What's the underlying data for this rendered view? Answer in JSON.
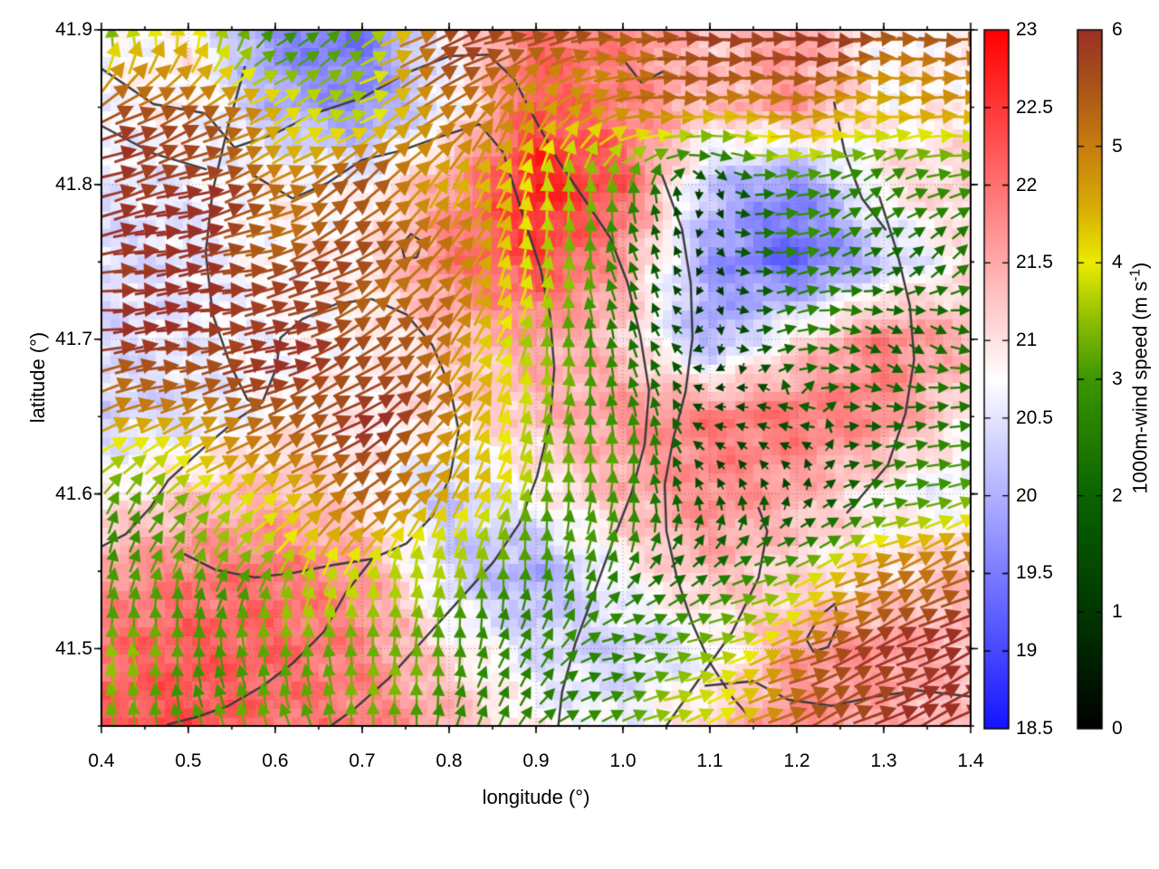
{
  "axes": {
    "x": {
      "label": "longitude (°)",
      "range": [
        0.4,
        1.4
      ],
      "ticks": [
        "0.4",
        "0.5",
        "0.6",
        "0.7",
        "0.8",
        "0.9",
        "1.0",
        "1.1",
        "1.2",
        "1.3",
        "1.4"
      ],
      "minor_step": 0.05
    },
    "y": {
      "label": "latitude (°)",
      "range": [
        41.45,
        41.9
      ],
      "ticks": [
        "41.5",
        "41.6",
        "41.7",
        "41.8",
        "41.9"
      ],
      "minor_step": 0.05
    }
  },
  "colorbars": {
    "temperature": {
      "range": [
        18.5,
        23
      ],
      "ticks": [
        "23",
        "22.5",
        "22",
        "21.5",
        "21",
        "20.5",
        "20",
        "19.5",
        "19",
        "18.5"
      ],
      "stops": [
        [
          18.5,
          "#1414ff"
        ],
        [
          20.75,
          "#ffffff"
        ],
        [
          23,
          "#ff0000"
        ]
      ]
    },
    "wind": {
      "label_prefix": "1000m-wind speed (m s",
      "label_sup": "-1",
      "label_suffix": ")",
      "range": [
        0,
        6
      ],
      "ticks": [
        "6",
        "5",
        "4",
        "3",
        "2",
        "1",
        "0"
      ],
      "stops": [
        [
          0,
          "#000000"
        ],
        [
          1,
          "#003800"
        ],
        [
          2,
          "#0a6400"
        ],
        [
          3,
          "#3c9600"
        ],
        [
          3.5,
          "#8cbe00"
        ],
        [
          4,
          "#ebeb00"
        ],
        [
          4.5,
          "#d7aa05"
        ],
        [
          5,
          "#c87d0f"
        ],
        [
          5.5,
          "#aa5519"
        ],
        [
          6,
          "#9b3026"
        ]
      ]
    }
  },
  "chart_data": {
    "type": "heatmap",
    "subtype": "vector-field-map-with-contours",
    "grid_lons": [
      0.4,
      0.5,
      0.6,
      0.7,
      0.8,
      0.9,
      1.0,
      1.1,
      1.2,
      1.3,
      1.4
    ],
    "grid_lats": [
      41.9,
      41.85,
      41.8,
      41.75,
      41.7,
      41.65,
      41.6,
      41.55,
      41.5,
      41.45
    ],
    "temperature": [
      [
        20.6,
        20.9,
        19.6,
        19.4,
        20.8,
        22.0,
        21.8,
        21.2,
        21.6,
        20.7,
        20.9
      ],
      [
        20.7,
        20.9,
        20.0,
        19.6,
        20.6,
        22.3,
        21.9,
        21.3,
        21.7,
        20.8,
        20.9
      ],
      [
        20.5,
        20.6,
        20.9,
        20.7,
        21.6,
        22.8,
        22.2,
        20.2,
        19.6,
        21.0,
        21.2
      ],
      [
        20.4,
        20.5,
        20.8,
        20.9,
        21.9,
        22.4,
        21.6,
        19.8,
        19.2,
        20.2,
        21.0
      ],
      [
        20.4,
        20.6,
        20.7,
        20.8,
        21.2,
        21.6,
        21.2,
        19.9,
        21.0,
        21.9,
        21.4
      ],
      [
        20.3,
        20.4,
        20.8,
        20.9,
        21.0,
        21.3,
        21.7,
        21.9,
        22.0,
        21.8,
        20.9
      ],
      [
        20.8,
        21.2,
        21.4,
        20.9,
        20.2,
        20.8,
        21.4,
        21.8,
        21.5,
        20.8,
        20.5
      ],
      [
        21.6,
        21.9,
        22.0,
        21.7,
        20.3,
        19.9,
        20.8,
        21.4,
        21.0,
        20.9,
        21.4
      ],
      [
        22.0,
        22.2,
        22.1,
        21.8,
        21.0,
        20.4,
        20.3,
        20.6,
        21.6,
        21.7,
        21.3
      ],
      [
        22.2,
        22.3,
        22.0,
        21.9,
        21.5,
        20.8,
        20.6,
        21.2,
        21.8,
        21.5,
        21.2
      ]
    ],
    "wind_speed": [
      [
        3.0,
        4.0,
        2.5,
        3.5,
        6.0,
        5.5,
        5.5,
        6.0,
        6.0,
        5.5,
        5.5
      ],
      [
        5.5,
        5.5,
        4.0,
        3.5,
        5.5,
        4.5,
        5.0,
        5.0,
        5.0,
        4.5,
        4.5
      ],
      [
        6.0,
        6.0,
        5.0,
        5.5,
        4.5,
        4.0,
        3.0,
        1.0,
        3.0,
        2.5,
        3.0
      ],
      [
        6.0,
        6.0,
        5.5,
        5.5,
        5.0,
        4.0,
        2.5,
        0.6,
        3.0,
        2.0,
        2.5
      ],
      [
        6.0,
        6.0,
        6.0,
        5.5,
        5.0,
        3.5,
        2.5,
        0.7,
        2.5,
        2.0,
        2.2
      ],
      [
        4.5,
        5.0,
        5.5,
        6.0,
        5.0,
        3.5,
        3.0,
        1.2,
        1.5,
        2.0,
        2.5
      ],
      [
        3.0,
        3.5,
        4.5,
        5.5,
        4.5,
        3.5,
        3.0,
        1.5,
        1.0,
        2.5,
        3.5
      ],
      [
        3.0,
        3.0,
        3.5,
        4.0,
        3.5,
        3.0,
        2.5,
        2.0,
        3.5,
        5.0,
        5.5
      ],
      [
        3.5,
        3.0,
        3.2,
        3.5,
        3.0,
        2.5,
        2.8,
        3.5,
        5.0,
        6.0,
        6.0
      ],
      [
        3.3,
        3.2,
        3.0,
        3.3,
        3.0,
        2.5,
        3.0,
        4.0,
        5.5,
        6.0,
        6.0
      ]
    ],
    "wind_dir_deg": [
      [
        110,
        100,
        40,
        40,
        20,
        10,
        5,
        0,
        0,
        0,
        0
      ],
      [
        30,
        25,
        30,
        20,
        35,
        70,
        5,
        0,
        0,
        0,
        0
      ],
      [
        15,
        15,
        25,
        40,
        60,
        80,
        90,
        270,
        10,
        40,
        10
      ],
      [
        8,
        8,
        15,
        30,
        50,
        80,
        110,
        270,
        10,
        30,
        50
      ],
      [
        5,
        5,
        10,
        30,
        50,
        80,
        110,
        250,
        15,
        320,
        340
      ],
      [
        25,
        20,
        25,
        30,
        55,
        80,
        95,
        170,
        175,
        0,
        10
      ],
      [
        60,
        45,
        35,
        30,
        55,
        80,
        90,
        120,
        90,
        10,
        15
      ],
      [
        80,
        70,
        60,
        75,
        85,
        90,
        60,
        30,
        20,
        25,
        25
      ],
      [
        95,
        95,
        100,
        90,
        85,
        60,
        10,
        15,
        20,
        25,
        25
      ],
      [
        100,
        105,
        110,
        95,
        80,
        45,
        20,
        25,
        25,
        25,
        25
      ]
    ],
    "contour_color": "#3a3a3c",
    "contours": [
      [
        [
          0.4,
          41.875
        ],
        [
          0.46,
          41.852
        ],
        [
          0.52,
          41.846
        ],
        [
          0.553,
          41.824
        ],
        [
          0.6,
          41.833
        ],
        [
          0.645,
          41.846
        ],
        [
          0.7,
          41.856
        ],
        [
          0.75,
          41.872
        ],
        [
          0.8,
          41.883
        ],
        [
          0.845,
          41.884
        ],
        [
          0.875,
          41.868
        ],
        [
          0.9,
          41.841
        ],
        [
          0.925,
          41.816
        ],
        [
          0.955,
          41.791
        ],
        [
          0.985,
          41.766
        ],
        [
          1.005,
          41.737
        ],
        [
          1.02,
          41.702
        ],
        [
          1.03,
          41.667
        ],
        [
          1.025,
          41.632
        ],
        [
          1.01,
          41.601
        ],
        [
          0.99,
          41.572
        ],
        [
          0.968,
          41.538
        ],
        [
          0.945,
          41.503
        ],
        [
          0.93,
          41.472
        ],
        [
          0.925,
          41.447
        ]
      ],
      [
        [
          0.575,
          41.806
        ],
        [
          0.62,
          41.791
        ],
        [
          0.66,
          41.801
        ],
        [
          0.7,
          41.816
        ],
        [
          0.745,
          41.822
        ],
        [
          0.79,
          41.831
        ],
        [
          0.835,
          41.839
        ],
        [
          0.862,
          41.821
        ],
        [
          0.876,
          41.796
        ],
        [
          0.89,
          41.771
        ],
        [
          0.905,
          41.746
        ],
        [
          0.916,
          41.716
        ],
        [
          0.921,
          41.681
        ],
        [
          0.916,
          41.646
        ],
        [
          0.901,
          41.611
        ],
        [
          0.881,
          41.581
        ],
        [
          0.851,
          41.556
        ],
        [
          0.811,
          41.531
        ],
        [
          0.771,
          41.506
        ],
        [
          0.731,
          41.481
        ],
        [
          0.691,
          41.461
        ],
        [
          0.656,
          41.447
        ]
      ],
      [
        [
          0.565,
          41.876
        ],
        [
          0.545,
          41.836
        ],
        [
          0.528,
          41.796
        ],
        [
          0.52,
          41.756
        ],
        [
          0.528,
          41.716
        ],
        [
          0.548,
          41.684
        ],
        [
          0.568,
          41.661
        ],
        [
          0.583,
          41.656
        ]
      ],
      [
        [
          0.4,
          41.566
        ],
        [
          0.428,
          41.574
        ],
        [
          0.456,
          41.591
        ],
        [
          0.477,
          41.609
        ],
        [
          0.52,
          41.631
        ],
        [
          0.558,
          41.649
        ],
        [
          0.585,
          41.659
        ],
        [
          0.601,
          41.681
        ],
        [
          0.606,
          41.701
        ],
        [
          0.631,
          41.713
        ],
        [
          0.671,
          41.723
        ],
        [
          0.711,
          41.726
        ],
        [
          0.751,
          41.716
        ],
        [
          0.781,
          41.696
        ],
        [
          0.801,
          41.669
        ],
        [
          0.811,
          41.641
        ],
        [
          0.801,
          41.611
        ],
        [
          0.781,
          41.586
        ],
        [
          0.751,
          41.568
        ],
        [
          0.711,
          41.558
        ],
        [
          0.666,
          41.554
        ],
        [
          0.621,
          41.549
        ],
        [
          0.576,
          41.546
        ],
        [
          0.531,
          41.551
        ],
        [
          0.496,
          41.561
        ]
      ],
      [
        [
          1.045,
          41.806
        ],
        [
          1.068,
          41.771
        ],
        [
          1.078,
          41.736
        ],
        [
          1.08,
          41.701
        ],
        [
          1.072,
          41.666
        ],
        [
          1.058,
          41.636
        ],
        [
          1.048,
          41.606
        ],
        [
          1.05,
          41.576
        ],
        [
          1.062,
          41.546
        ],
        [
          1.08,
          41.516
        ],
        [
          1.1,
          41.491
        ],
        [
          1.125,
          41.469
        ],
        [
          1.15,
          41.453
        ]
      ],
      [
        [
          1.295,
          41.792
        ],
        [
          1.315,
          41.757
        ],
        [
          1.33,
          41.722
        ],
        [
          1.335,
          41.687
        ],
        [
          1.325,
          41.652
        ],
        [
          1.305,
          41.619
        ],
        [
          1.278,
          41.601
        ],
        [
          1.258,
          41.588
        ]
      ],
      [
        [
          1.243,
          41.853
        ],
        [
          1.255,
          41.821
        ],
        [
          1.275,
          41.791
        ],
        [
          1.302,
          41.771
        ]
      ],
      [
        [
          1.003,
          41.879
        ],
        [
          1.021,
          41.866
        ],
        [
          1.046,
          41.873
        ]
      ],
      [
        [
          0.716,
          41.561
        ],
        [
          0.681,
          41.536
        ],
        [
          0.656,
          41.511
        ],
        [
          0.621,
          41.491
        ],
        [
          0.586,
          41.476
        ],
        [
          0.546,
          41.463
        ],
        [
          0.511,
          41.456
        ],
        [
          0.476,
          41.451
        ]
      ],
      [
        [
          1.095,
          41.476
        ],
        [
          1.15,
          41.479
        ],
        [
          1.19,
          41.467
        ],
        [
          1.24,
          41.463
        ],
        [
          1.29,
          41.469
        ],
        [
          1.34,
          41.473
        ],
        [
          1.4,
          41.469
        ]
      ],
      [
        [
          1.046,
          41.447
        ],
        [
          1.086,
          41.479
        ],
        [
          1.126,
          41.511
        ],
        [
          1.156,
          41.546
        ],
        [
          1.166,
          41.576
        ],
        [
          1.156,
          41.591
        ]
      ],
      [
        [
          0.4,
          41.838
        ],
        [
          0.46,
          41.82
        ],
        [
          0.52,
          41.81
        ]
      ],
      [
        [
          0.745,
          41.761
        ],
        [
          0.756,
          41.768
        ],
        [
          0.769,
          41.763
        ],
        [
          0.763,
          41.753
        ],
        [
          0.749,
          41.752
        ],
        [
          0.745,
          41.761
        ]
      ],
      [
        [
          1.211,
          41.506
        ],
        [
          1.226,
          41.521
        ],
        [
          1.244,
          41.529
        ],
        [
          1.248,
          41.516
        ],
        [
          1.236,
          41.501
        ],
        [
          1.219,
          41.498
        ],
        [
          1.211,
          41.506
        ]
      ]
    ]
  }
}
